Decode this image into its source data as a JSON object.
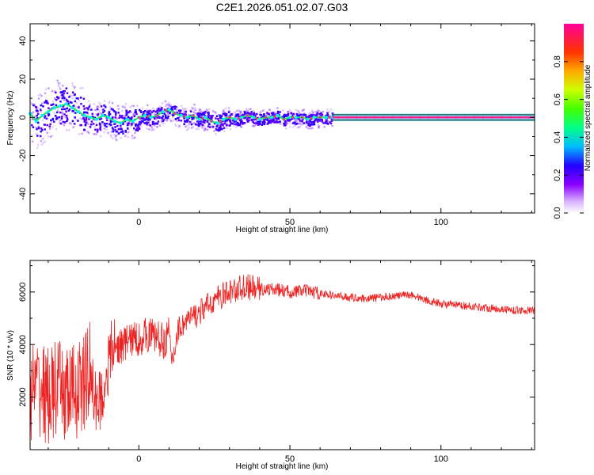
{
  "title": "C2E1.2026.051.02.07.G03",
  "panels": {
    "spectrogram": {
      "xlabel": "Height of straight line (km)",
      "ylabel": "Frequency (Hz)",
      "colorbar_label": "Normalized spectral amplitude"
    },
    "snr": {
      "xlabel": "Height of straight line (km)",
      "ylabel": "SNR (10 * v/v)"
    }
  },
  "chart_data": [
    {
      "type": "heatmap",
      "title": "C2E1.2026.051.02.07.G03",
      "xlabel": "Height of straight line (km)",
      "ylabel": "Frequency (Hz)",
      "xlim": [
        -36,
        131
      ],
      "ylim": [
        -50,
        49
      ],
      "x_ticks": [
        0,
        50,
        100
      ],
      "y_ticks": [
        -40,
        -20,
        0,
        20,
        40
      ],
      "x_tick_labels": [
        "0",
        "50",
        "100"
      ],
      "y_tick_labels": [
        "-40",
        "-20",
        "0",
        "20",
        "40"
      ],
      "colorbar": {
        "label": "Normalized spectral amplitude",
        "range": [
          0,
          1
        ],
        "ticks": [
          0.0,
          0.2,
          0.4,
          0.6,
          0.8
        ],
        "tick_labels": [
          "0.0",
          "0.2",
          "0.4",
          "0.6",
          "0.8"
        ]
      },
      "peak_frequency_track": [
        [
          -36,
          2
        ],
        [
          -34,
          -2
        ],
        [
          -32,
          1
        ],
        [
          -30,
          3
        ],
        [
          -28,
          5
        ],
        [
          -26,
          6
        ],
        [
          -24,
          7
        ],
        [
          -22,
          5
        ],
        [
          -20,
          3
        ],
        [
          -18,
          1
        ],
        [
          -16,
          0
        ],
        [
          -14,
          -1
        ],
        [
          -12,
          1
        ],
        [
          -10,
          0
        ],
        [
          -8,
          -2
        ],
        [
          -6,
          -3
        ],
        [
          -4,
          -1
        ],
        [
          -2,
          -2
        ],
        [
          0,
          0
        ],
        [
          2,
          1
        ],
        [
          4,
          0
        ],
        [
          6,
          1
        ],
        [
          8,
          3
        ],
        [
          10,
          4
        ],
        [
          12,
          2
        ],
        [
          14,
          1
        ],
        [
          16,
          0
        ],
        [
          18,
          1
        ],
        [
          20,
          -1
        ],
        [
          22,
          0
        ],
        [
          24,
          -2
        ],
        [
          26,
          -3
        ],
        [
          28,
          -1
        ],
        [
          30,
          0
        ],
        [
          32,
          -1
        ],
        [
          34,
          0
        ],
        [
          36,
          1
        ],
        [
          38,
          0
        ],
        [
          40,
          -1
        ],
        [
          42,
          0
        ],
        [
          44,
          0
        ],
        [
          46,
          1
        ],
        [
          48,
          -1
        ],
        [
          50,
          0
        ],
        [
          52,
          0
        ],
        [
          54,
          0
        ],
        [
          56,
          -1
        ],
        [
          58,
          0
        ],
        [
          60,
          0
        ],
        [
          62,
          0
        ],
        [
          64,
          0
        ],
        [
          70,
          0
        ],
        [
          80,
          0
        ],
        [
          90,
          0
        ],
        [
          100,
          0
        ],
        [
          110,
          0
        ],
        [
          120,
          0
        ],
        [
          131,
          0
        ]
      ]
    },
    {
      "type": "line",
      "xlabel": "Height of straight line (km)",
      "ylabel": "SNR (10 * v/v)",
      "xlim": [
        -36,
        131
      ],
      "ylim": [
        0,
        7200
      ],
      "x_ticks": [
        0,
        50,
        100
      ],
      "y_ticks": [
        2000,
        4000,
        6000
      ],
      "x_tick_labels": [
        "0",
        "50",
        "100"
      ],
      "y_tick_labels": [
        "2000",
        "4000",
        "6000"
      ],
      "series": [
        {
          "name": "SNR",
          "color": "#ee2222",
          "x": [
            -36,
            -33,
            -30,
            -27,
            -24,
            -21,
            -18,
            -16,
            -15,
            -12,
            -10,
            -9,
            -7,
            -5,
            -3,
            0,
            3,
            6,
            8,
            10,
            11,
            13,
            16,
            20,
            25,
            30,
            35,
            40,
            45,
            50,
            55,
            60,
            65,
            70,
            75,
            80,
            85,
            90,
            95,
            98,
            100,
            105,
            110,
            115,
            120,
            125,
            131
          ],
          "values": [
            2200,
            2400,
            2000,
            2300,
            2100,
            2200,
            2500,
            3200,
            1800,
            2000,
            3300,
            3800,
            3900,
            4000,
            4200,
            4200,
            4400,
            4300,
            4100,
            4400,
            3300,
            4600,
            4900,
            5200,
            5700,
            6000,
            6200,
            6100,
            6100,
            6000,
            6050,
            5950,
            5850,
            5800,
            5750,
            5800,
            5850,
            5900,
            5700,
            5600,
            5550,
            5500,
            5450,
            5400,
            5350,
            5300,
            5300
          ]
        }
      ]
    }
  ]
}
